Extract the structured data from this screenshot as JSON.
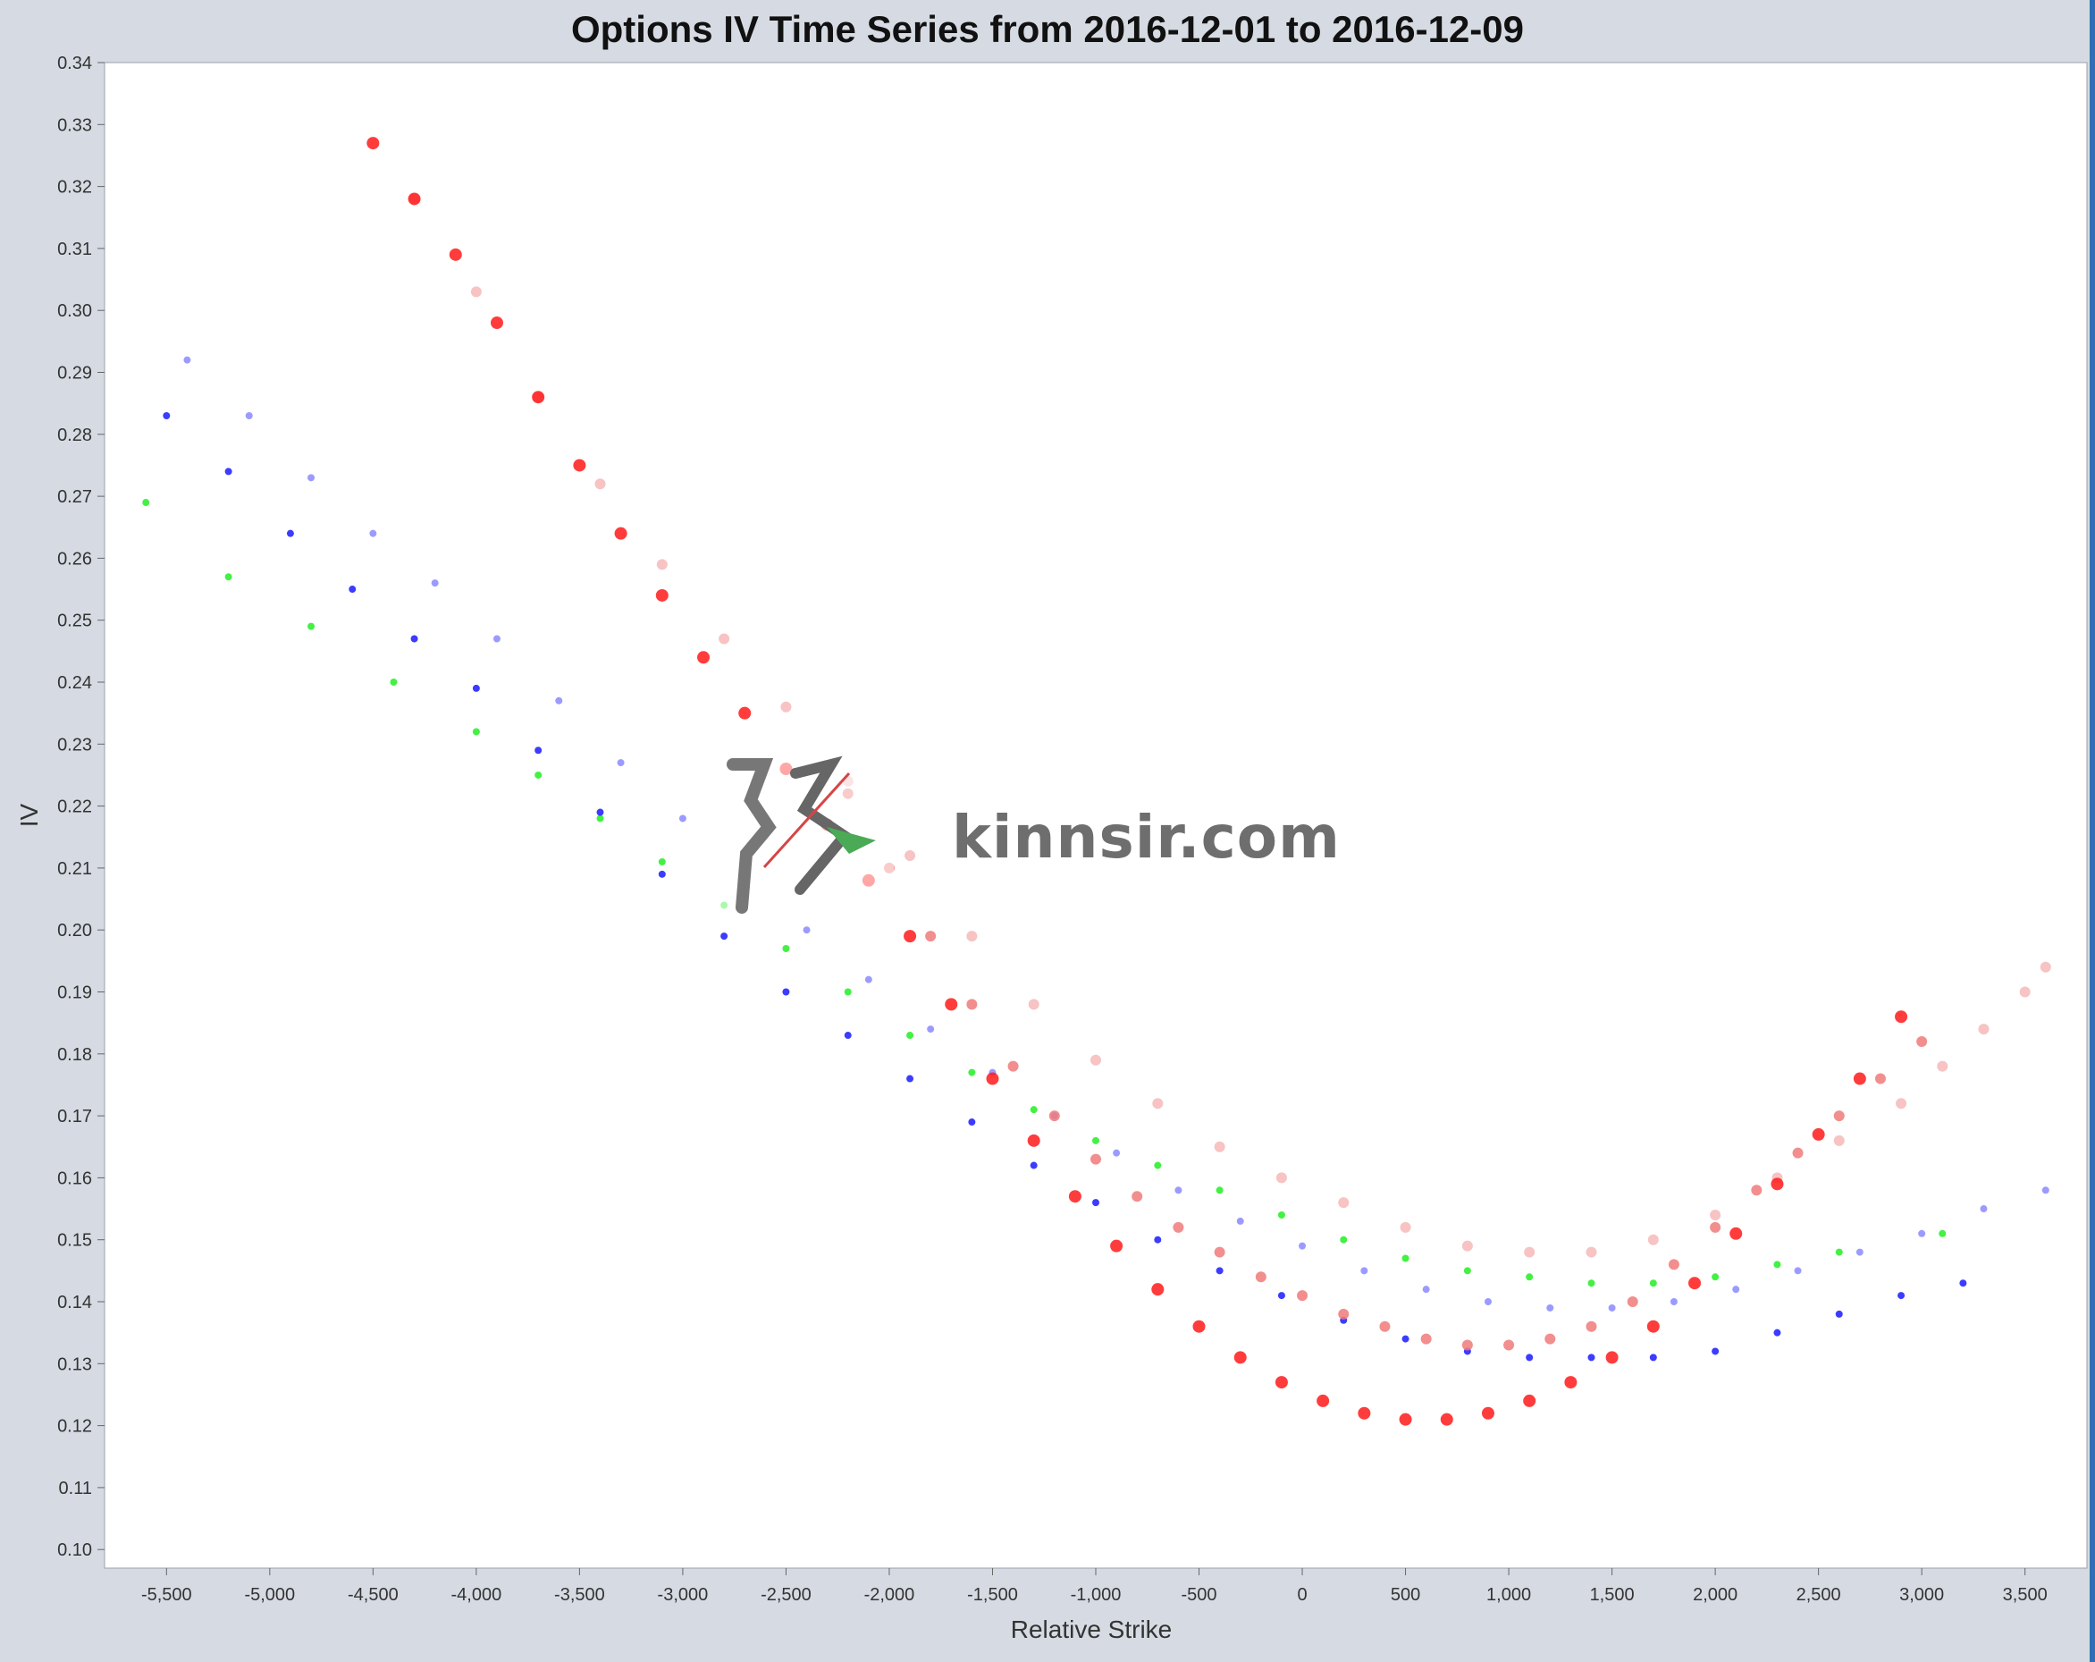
{
  "chart_data": {
    "type": "scatter",
    "title": "Options IV Time Series from 2016-12-01 to 2016-12-09",
    "xlabel": "Relative Strike",
    "ylabel": "IV",
    "xlim": [
      -5800,
      3800
    ],
    "ylim": [
      0.097,
      0.34
    ],
    "x_ticks": [
      -5500,
      -5000,
      -4500,
      -4000,
      -3500,
      -3000,
      -2500,
      -2000,
      -1500,
      -1000,
      -500,
      0,
      500,
      1000,
      1500,
      2000,
      2500,
      3000,
      3500
    ],
    "x_tick_labels": [
      "-5,500",
      "-5,000",
      "-4,500",
      "-4,000",
      "-3,500",
      "-3,000",
      "-2,500",
      "-2,000",
      "-1,500",
      "-1,000",
      "-500",
      "0",
      "500",
      "1,000",
      "1,500",
      "2,000",
      "2,500",
      "3,000",
      "3,500"
    ],
    "y_ticks": [
      0.1,
      0.11,
      0.12,
      0.13,
      0.14,
      0.15,
      0.16,
      0.17,
      0.18,
      0.19,
      0.2,
      0.21,
      0.22,
      0.23,
      0.24,
      0.25,
      0.26,
      0.27,
      0.28,
      0.29,
      0.3,
      0.31,
      0.32,
      0.33,
      0.34
    ],
    "y_tick_labels": [
      "0.10",
      "0.11",
      "0.12",
      "0.13",
      "0.14",
      "0.15",
      "0.16",
      "0.17",
      "0.18",
      "0.19",
      "0.20",
      "0.21",
      "0.22",
      "0.23",
      "0.24",
      "0.25",
      "0.26",
      "0.27",
      "0.28",
      "0.29",
      "0.30",
      "0.31",
      "0.32",
      "0.33",
      "0.34"
    ],
    "grid": false,
    "legend": "none",
    "colors": {
      "red": "#ff1a1a",
      "salmon": "#f07a7a",
      "pink": "#f6b8b8",
      "blue": "#1a1aff",
      "light_blue": "#8a8aff",
      "green": "#22ee22",
      "background": "#d6dbe3",
      "plot_background": "#ffffff"
    },
    "series": [
      {
        "color": "red",
        "x": [
          -4500,
          -4300,
          -4100,
          -3900,
          -3700,
          -3500,
          -3300,
          -3100,
          -2900,
          -2700,
          -2500,
          -2300,
          -2100,
          -1900,
          -1700,
          -1500,
          -1300,
          -1100,
          -900,
          -700,
          -500,
          -300,
          -100,
          100,
          300,
          500,
          700,
          900,
          1100,
          1300,
          1500,
          1700,
          1900,
          2100,
          2300,
          2500,
          2700,
          2900
        ],
        "y": [
          0.327,
          0.318,
          0.309,
          0.298,
          0.286,
          0.275,
          0.264,
          0.254,
          0.244,
          0.235,
          0.226,
          0.217,
          0.208,
          0.199,
          0.188,
          0.176,
          0.166,
          0.157,
          0.149,
          0.142,
          0.136,
          0.131,
          0.127,
          0.124,
          0.122,
          0.121,
          0.121,
          0.122,
          0.124,
          0.127,
          0.131,
          0.136,
          0.143,
          0.151,
          0.159,
          0.167,
          0.176,
          0.186
        ]
      },
      {
        "color": "salmon",
        "x": [
          -2200,
          -2000,
          -1800,
          -1600,
          -1400,
          -1200,
          -1000,
          -800,
          -600,
          -400,
          -200,
          0,
          200,
          400,
          600,
          800,
          1000,
          1200,
          1400,
          1600,
          1800,
          2000,
          2200,
          2400,
          2600,
          2800,
          3000
        ],
        "y": [
          0.222,
          0.21,
          0.199,
          0.188,
          0.178,
          0.17,
          0.163,
          0.157,
          0.152,
          0.148,
          0.144,
          0.141,
          0.138,
          0.136,
          0.134,
          0.133,
          0.133,
          0.134,
          0.136,
          0.14,
          0.146,
          0.152,
          0.158,
          0.164,
          0.17,
          0.176,
          0.182
        ]
      },
      {
        "color": "pink",
        "x": [
          -4300,
          -4000,
          -3700,
          -3400,
          -3100,
          -2800,
          -2500,
          -2200,
          -1900,
          -1600,
          -1300,
          -1000,
          -700,
          -400,
          -100,
          200,
          500,
          800,
          1100,
          1400,
          1700,
          2000,
          2300,
          2600,
          2900,
          3100,
          3300,
          3500,
          3600
        ],
        "y": [
          0.318,
          0.303,
          0.286,
          0.272,
          0.259,
          0.247,
          0.236,
          0.224,
          0.212,
          0.199,
          0.188,
          0.179,
          0.172,
          0.165,
          0.16,
          0.156,
          0.152,
          0.149,
          0.148,
          0.148,
          0.15,
          0.154,
          0.16,
          0.166,
          0.172,
          0.178,
          0.184,
          0.19,
          0.194
        ]
      },
      {
        "color": "blue",
        "x": [
          -5500,
          -5200,
          -4900,
          -4600,
          -4300,
          -4000,
          -3700,
          -3400,
          -3100,
          -2800,
          -2500,
          -2200,
          -1900,
          -1600,
          -1300,
          -1000,
          -700,
          -400,
          -100,
          200,
          500,
          800,
          1100,
          1400,
          1700,
          2000,
          2300,
          2600,
          2900,
          3200
        ],
        "y": [
          0.283,
          0.274,
          0.264,
          0.255,
          0.247,
          0.239,
          0.229,
          0.219,
          0.209,
          0.199,
          0.19,
          0.183,
          0.176,
          0.169,
          0.162,
          0.156,
          0.15,
          0.145,
          0.141,
          0.137,
          0.134,
          0.132,
          0.131,
          0.131,
          0.131,
          0.132,
          0.135,
          0.138,
          0.141,
          0.143
        ]
      },
      {
        "color": "light_blue",
        "x": [
          -5400,
          -5100,
          -4800,
          -4500,
          -4200,
          -3900,
          -3600,
          -3300,
          -3000,
          -2700,
          -2400,
          -2100,
          -1800,
          -1500,
          -1200,
          -900,
          -600,
          -300,
          0,
          300,
          600,
          900,
          1200,
          1500,
          1800,
          2100,
          2400,
          2700,
          3000,
          3300,
          3600
        ],
        "y": [
          0.292,
          0.283,
          0.273,
          0.264,
          0.256,
          0.247,
          0.237,
          0.227,
          0.218,
          0.209,
          0.2,
          0.192,
          0.184,
          0.177,
          0.17,
          0.164,
          0.158,
          0.153,
          0.149,
          0.145,
          0.142,
          0.14,
          0.139,
          0.139,
          0.14,
          0.142,
          0.145,
          0.148,
          0.151,
          0.155,
          0.158
        ]
      },
      {
        "color": "green",
        "x": [
          -5600,
          -5200,
          -4800,
          -4400,
          -4000,
          -3700,
          -3400,
          -3100,
          -2800,
          -2500,
          -2200,
          -1900,
          -1600,
          -1300,
          -1000,
          -700,
          -400,
          -100,
          200,
          500,
          800,
          1100,
          1400,
          1700,
          2000,
          2300,
          2600,
          3100
        ],
        "y": [
          0.269,
          0.257,
          0.249,
          0.24,
          0.232,
          0.225,
          0.218,
          0.211,
          0.204,
          0.197,
          0.19,
          0.183,
          0.177,
          0.171,
          0.166,
          0.162,
          0.158,
          0.154,
          0.15,
          0.147,
          0.145,
          0.144,
          0.143,
          0.143,
          0.144,
          0.146,
          0.148,
          0.151
        ]
      }
    ]
  },
  "watermark": {
    "text": "kinnsir.com"
  }
}
